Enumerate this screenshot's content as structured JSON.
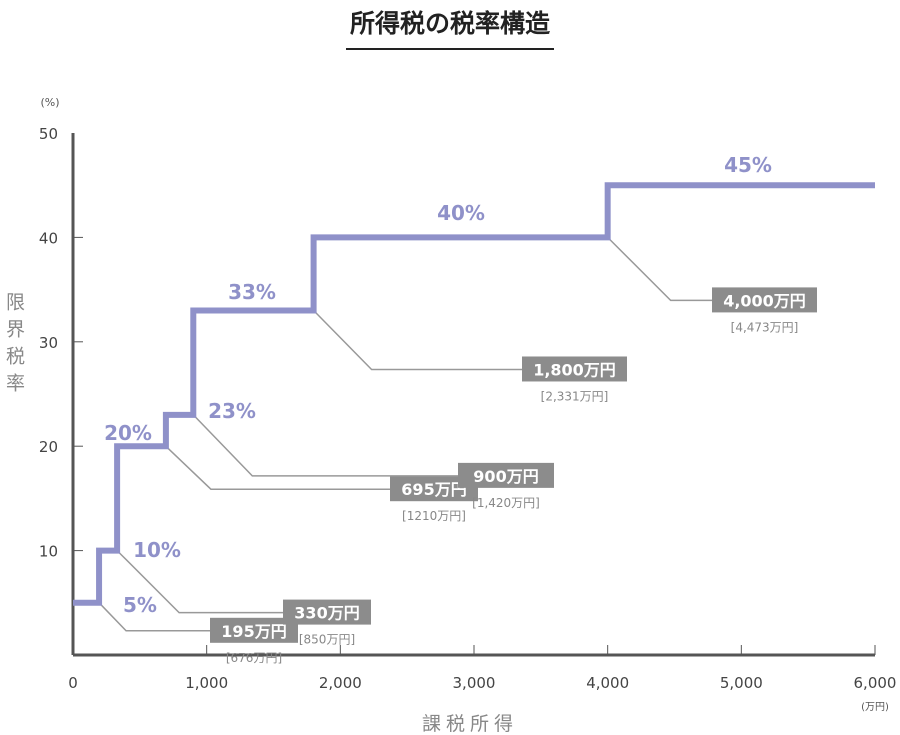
{
  "chart_data": {
    "type": "line",
    "title": "所得税の税率構造",
    "xlabel": "課税所得",
    "ylabel": "限界税率",
    "x_unit": "(万円)",
    "y_unit": "(%)",
    "xlim": [
      0,
      6000
    ],
    "ylim": [
      0,
      50
    ],
    "x_ticks": [
      0,
      1000,
      2000,
      3000,
      4000,
      5000,
      6000
    ],
    "x_tick_labels": [
      "0",
      "1,000",
      "2,000",
      "3,000",
      "4,000",
      "5,000",
      "6,000"
    ],
    "y_ticks": [
      10,
      20,
      30,
      40,
      50
    ],
    "y_tick_labels": [
      "10",
      "20",
      "30",
      "40",
      "50"
    ],
    "steps": [
      {
        "from": 0,
        "to": 195,
        "rate": 5,
        "label": "5%"
      },
      {
        "from": 195,
        "to": 330,
        "rate": 10,
        "label": "10%"
      },
      {
        "from": 330,
        "to": 695,
        "rate": 20,
        "label": "20%"
      },
      {
        "from": 695,
        "to": 900,
        "rate": 23,
        "label": "23%"
      },
      {
        "from": 900,
        "to": 1800,
        "rate": 33,
        "label": "33%"
      },
      {
        "from": 1800,
        "to": 4000,
        "rate": 40,
        "label": "40%"
      },
      {
        "from": 4000,
        "to": 6000,
        "rate": 45,
        "label": "45%"
      }
    ],
    "annotations": [
      {
        "x": 195,
        "label": "195万円",
        "sub": "[676万円]"
      },
      {
        "x": 330,
        "label": "330万円",
        "sub": "[850万円]"
      },
      {
        "x": 695,
        "label": "695万円",
        "sub": "[1210万円]"
      },
      {
        "x": 900,
        "label": "900万円",
        "sub": "[1,420万円]"
      },
      {
        "x": 1800,
        "label": "1,800万円",
        "sub": "[2,331万円]"
      },
      {
        "x": 4000,
        "label": "4,000万円",
        "sub": "[4,473万円]"
      }
    ],
    "colors": {
      "line": "#8f91c9",
      "axis": "#555555",
      "leader": "#999999",
      "box": "#8c8c8c"
    }
  }
}
